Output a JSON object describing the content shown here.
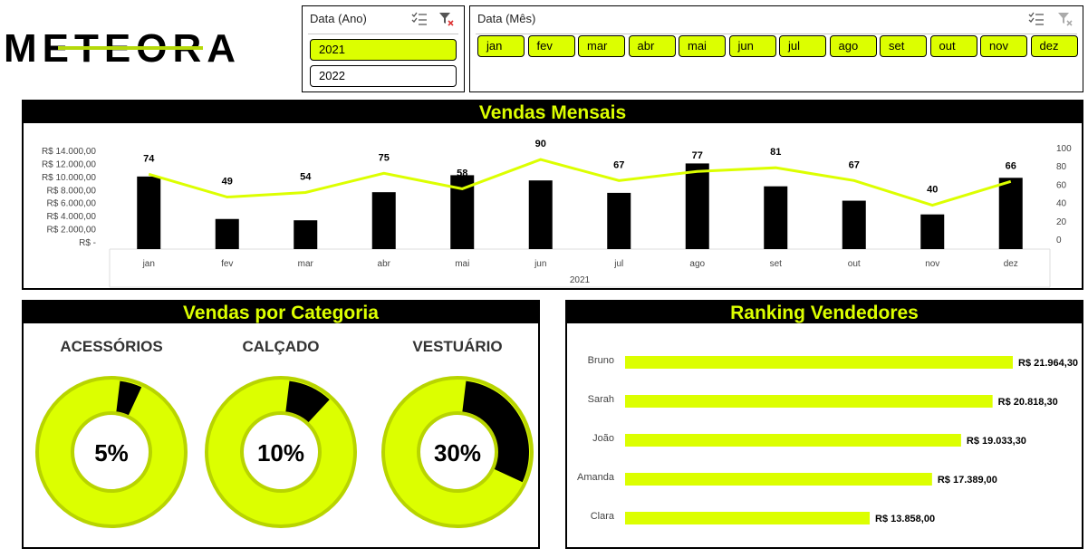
{
  "logo": {
    "text": "METEORA",
    "colors": {
      "main": "#000000",
      "accent": "#b5d90a"
    }
  },
  "slicer_ano": {
    "title": "Data (Ano)",
    "items": [
      {
        "label": "2021",
        "selected": true
      },
      {
        "label": "2022",
        "selected": false
      }
    ],
    "icons": [
      "multi-select-icon",
      "clear-filter-icon"
    ]
  },
  "slicer_mes": {
    "title": "Data (Mês)",
    "items": [
      {
        "label": "jan",
        "selected": true
      },
      {
        "label": "fev",
        "selected": true
      },
      {
        "label": "mar",
        "selected": true
      },
      {
        "label": "abr",
        "selected": true
      },
      {
        "label": "mai",
        "selected": true
      },
      {
        "label": "jun",
        "selected": true
      },
      {
        "label": "jul",
        "selected": true
      },
      {
        "label": "ago",
        "selected": true
      },
      {
        "label": "set",
        "selected": true
      },
      {
        "label": "out",
        "selected": true
      },
      {
        "label": "nov",
        "selected": true
      },
      {
        "label": "dez",
        "selected": true
      }
    ],
    "icons": [
      "multi-select-icon",
      "clear-filter-icon"
    ]
  },
  "colors": {
    "accent": "#dcff00",
    "bar": "#000000",
    "line": "#dcff00",
    "header_bg": "#000000"
  },
  "monthly": {
    "title": "Vendas Mensais",
    "chart_data": {
      "type": "bar",
      "categories": [
        "jan",
        "fev",
        "mar",
        "abr",
        "mai",
        "jun",
        "jul",
        "ago",
        "set",
        "out",
        "nov",
        "dez"
      ],
      "x_group_label": "2021",
      "series": [
        {
          "values": [
            10000,
            3500,
            3300,
            7600,
            10200,
            9400,
            7500,
            12000,
            8500,
            6300,
            4200,
            9800
          ],
          "axis": "left",
          "kind": "bar"
        },
        {
          "values": [
            74,
            49,
            54,
            75,
            58,
            90,
            67,
            77,
            81,
            67,
            40,
            66
          ],
          "axis": "right",
          "kind": "line",
          "data_labels": true
        }
      ],
      "y_left": {
        "ticks": [
          "R$ 14.000,00",
          "R$ 12.000,00",
          "R$ 10.000,00",
          "R$ 8.000,00",
          "R$ 6.000,00",
          "R$ 4.000,00",
          "R$ 2.000,00",
          "R$ -"
        ],
        "ylim": [
          0,
          14000
        ]
      },
      "y_right": {
        "ticks": [
          "100",
          "80",
          "60",
          "40",
          "20",
          "0"
        ],
        "ylim": [
          0,
          100
        ]
      },
      "grid": false
    }
  },
  "categoria": {
    "title": "Vendas por Categoria",
    "chart_data": [
      {
        "type": "pie",
        "title": "ACESSÓRIOS",
        "value": 5,
        "label": "5%"
      },
      {
        "type": "pie",
        "title": "CALÇADO",
        "value": 10,
        "label": "10%"
      },
      {
        "type": "pie",
        "title": "VESTUÁRIO",
        "value": 30,
        "label": "30%"
      }
    ]
  },
  "ranking": {
    "title": "Ranking Vendedores",
    "chart_data": {
      "type": "bar",
      "orientation": "horizontal",
      "categories": [
        "Bruno",
        "Sarah",
        "João",
        "Amanda",
        "Clara"
      ],
      "values": [
        21964.3,
        20818.3,
        19033.3,
        17389.0,
        13858.0
      ],
      "labels": [
        "R$ 21.964,30",
        "R$ 20.818,30",
        "R$ 19.033,30",
        "R$ 17.389,00",
        "R$ 13.858,00"
      ]
    }
  }
}
